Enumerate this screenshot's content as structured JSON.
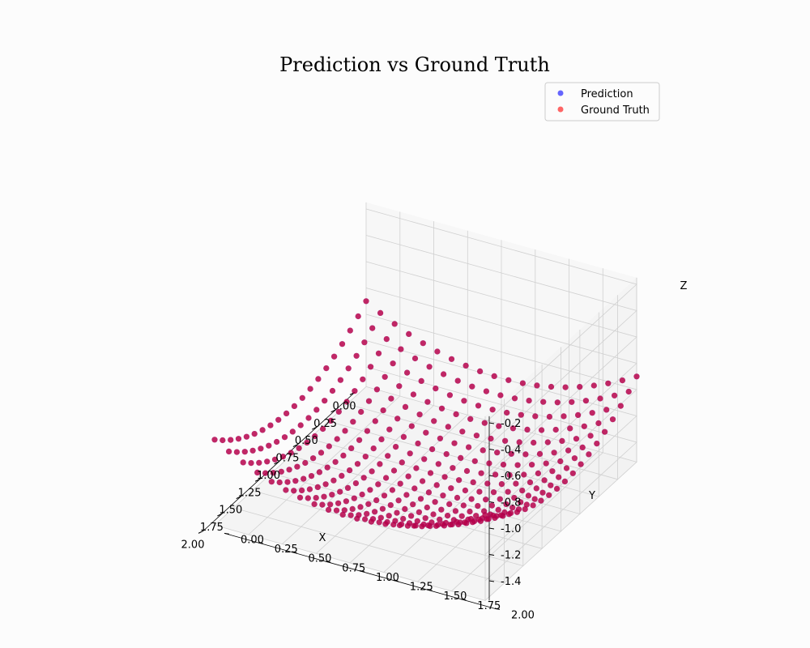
{
  "chart_data": {
    "type": "scatter",
    "projection": "3d",
    "title": "Prediction vs Ground Truth",
    "xlabel": "X",
    "ylabel": "Y",
    "zlabel": "Z",
    "xlim": [
      0,
      2
    ],
    "ylim": [
      0,
      2
    ],
    "zlim": [
      -1.55,
      -0.15
    ],
    "x_ticks": [
      "0.00",
      "0.25",
      "0.50",
      "0.75",
      "1.00",
      "1.25",
      "1.50",
      "1.75",
      "2.00"
    ],
    "y_ticks": [
      "0.00",
      "0.25",
      "0.50",
      "0.75",
      "1.00",
      "1.25",
      "1.50",
      "1.75",
      "2.00"
    ],
    "z_ticks": [
      "-1.4",
      "-1.2",
      "-1.0",
      "-0.8",
      "-0.6",
      "-0.4",
      "-0.2"
    ],
    "grid": true,
    "legend": "top-right",
    "grid_resolution": 20,
    "surface": "z = 0.3*(x-1)^2 + 0.3*(y-1)^2 - 1.5",
    "series": [
      {
        "name": "Prediction",
        "color": "#0000ff",
        "alpha": 0.6
      },
      {
        "name": "Ground Truth",
        "color": "#ff0000",
        "alpha": 0.6
      }
    ]
  }
}
